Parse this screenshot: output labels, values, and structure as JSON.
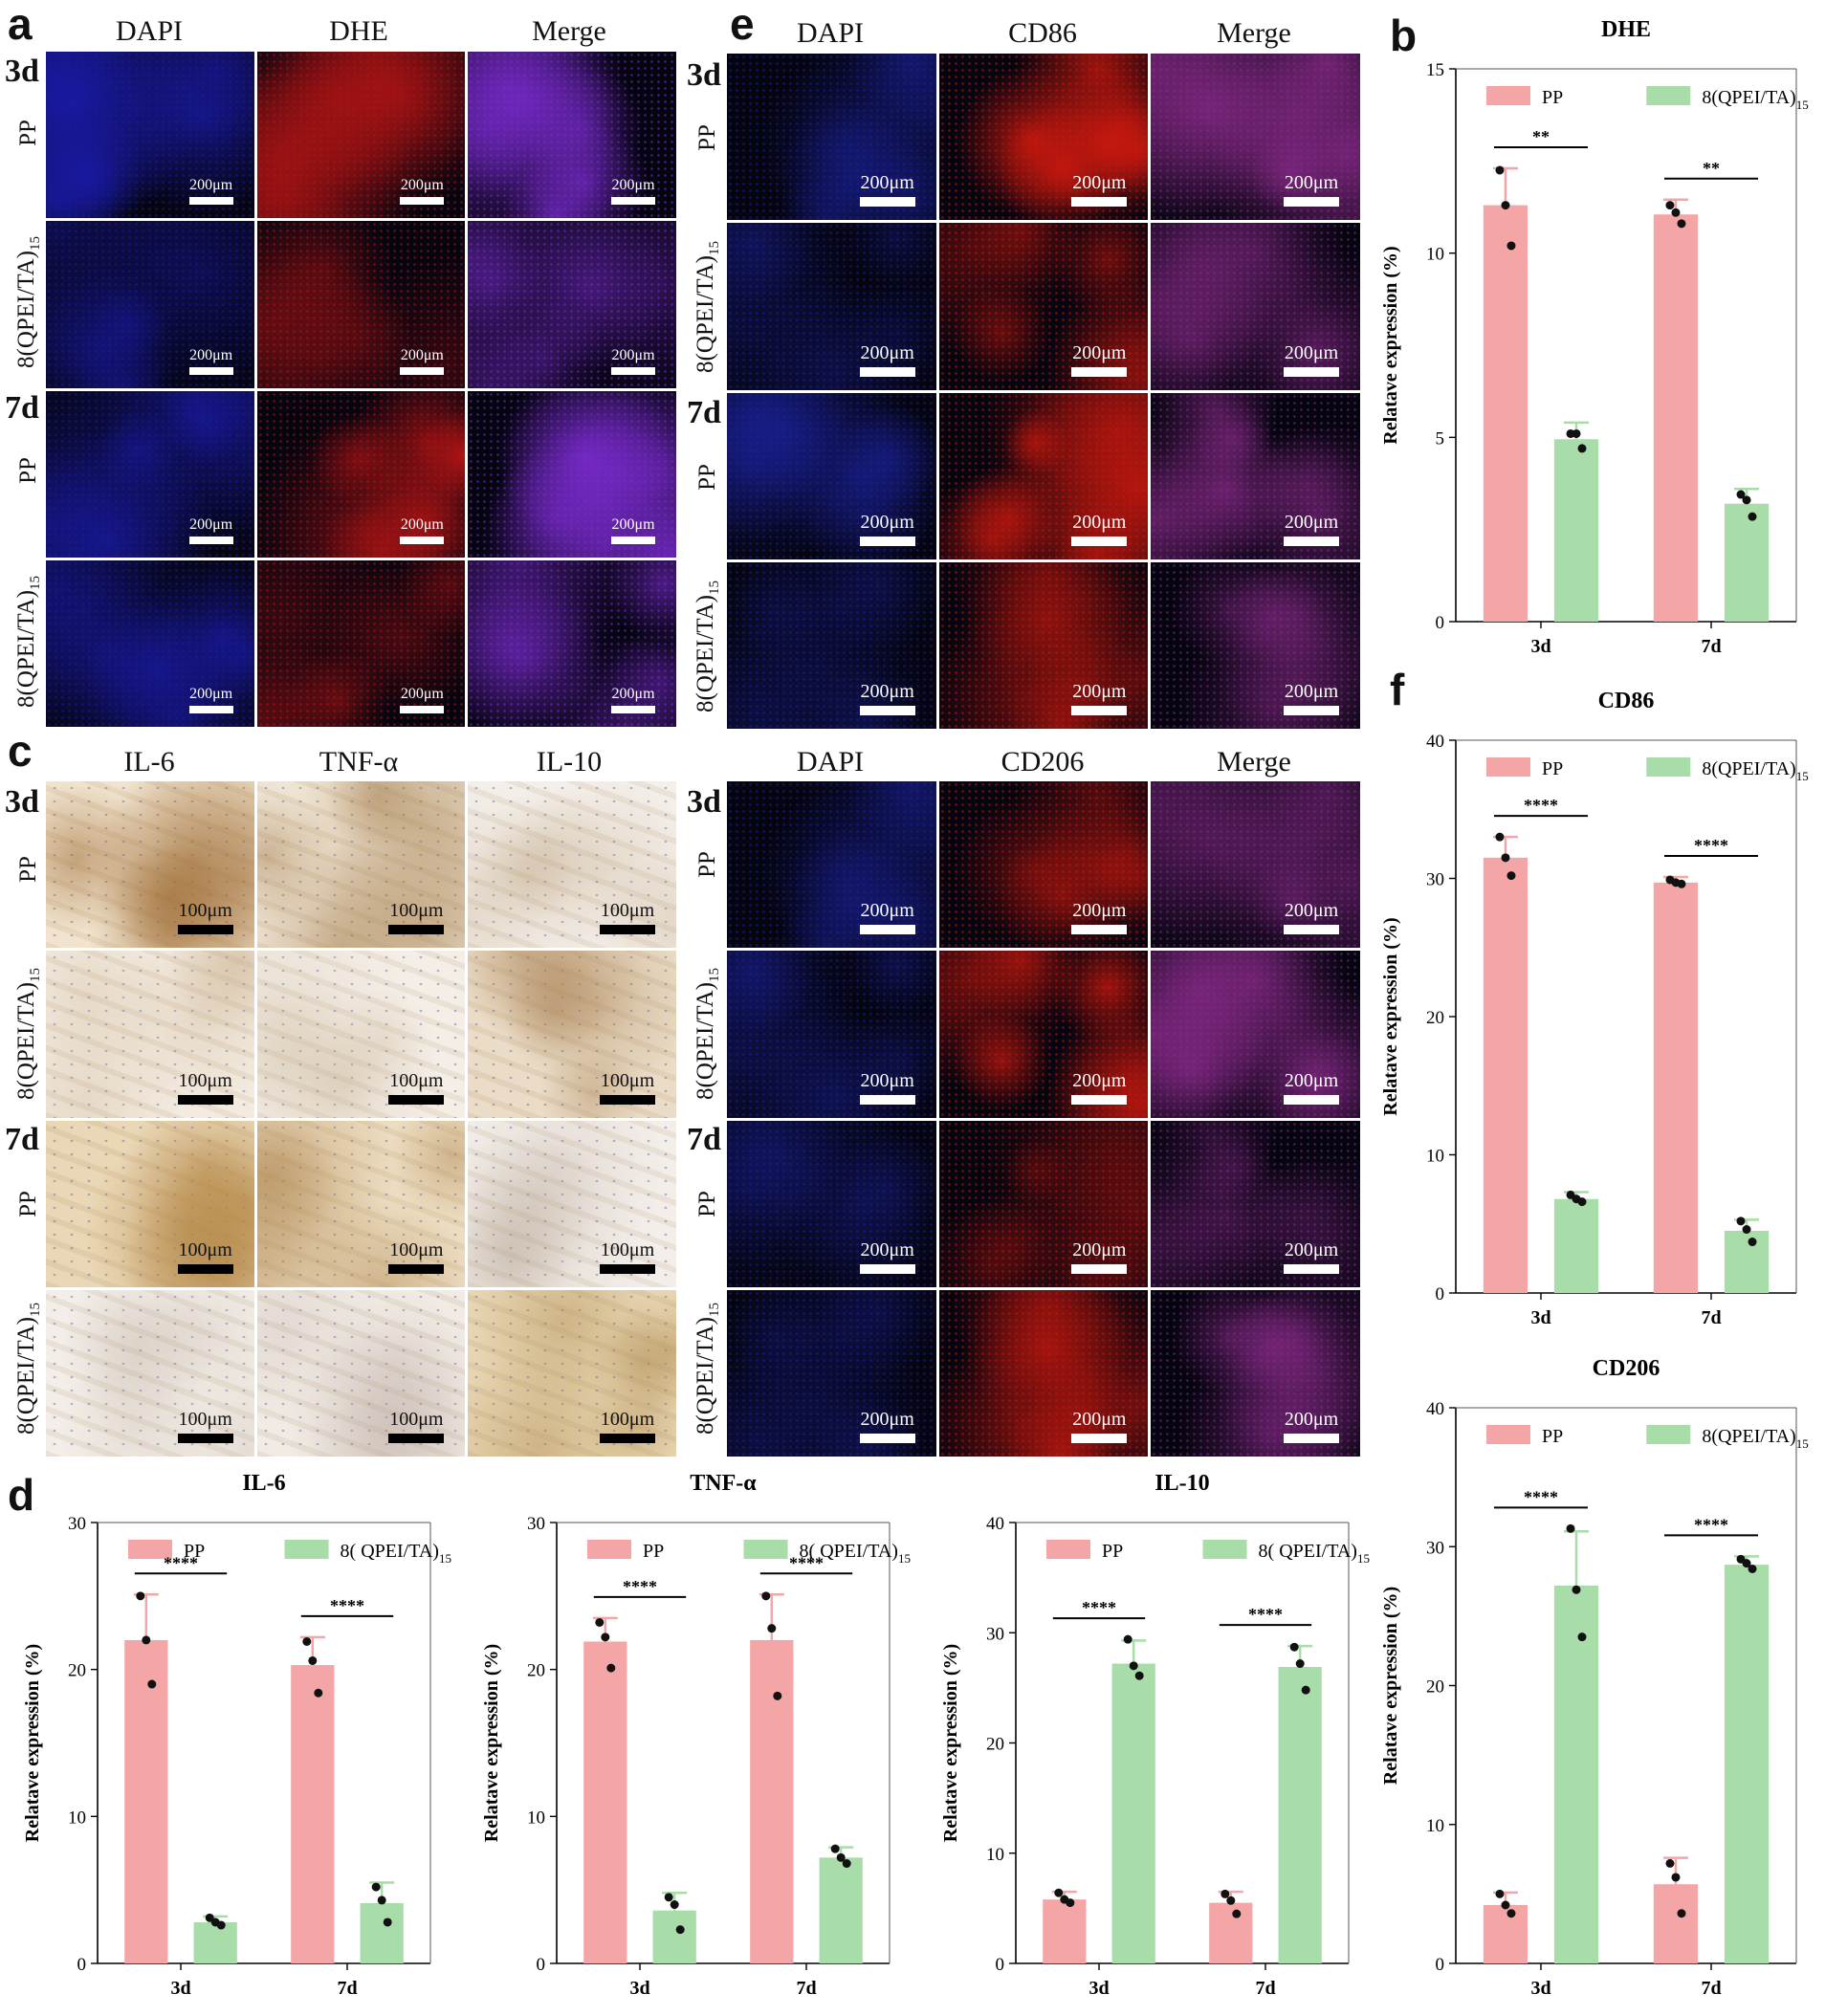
{
  "panels": {
    "a": {
      "letter": "a",
      "columns": [
        "DAPI",
        "DHE",
        "Merge"
      ],
      "days": [
        "3d",
        "7d"
      ],
      "rows": [
        "PP",
        "8(QPEI/TA)",
        "PP",
        "8(QPEI/TA)"
      ],
      "row_subscript": "15",
      "scale_label": "200μm",
      "colors": {
        "DAPI": "#1a1aa8",
        "DHE": "#b41414",
        "Merge": "#7b2bd0"
      }
    },
    "e": {
      "letter": "e",
      "columns_top": [
        "DAPI",
        "CD86",
        "Merge"
      ],
      "columns_bottom": [
        "DAPI",
        "CD206",
        "Merge"
      ],
      "days": [
        "3d",
        "7d",
        "3d",
        "7d"
      ],
      "rows": [
        "PP",
        "8(QPEI/TA)",
        "PP",
        "8(QPEI/TA)",
        "PP",
        "8(QPEI/TA)",
        "PP",
        "8(QPEI/TA)"
      ],
      "row_subscript": "15",
      "scale_label": "200μm"
    },
    "c": {
      "letter": "c",
      "columns": [
        "IL-6",
        "TNF-α",
        "IL-10"
      ],
      "days": [
        "3d",
        "7d"
      ],
      "rows": [
        "PP",
        "8(QPEI/TA)",
        "PP",
        "8(QPEI/TA)"
      ],
      "row_subscript": "15",
      "scale_label": "100μm"
    },
    "b": {
      "letter": "b"
    },
    "f": {
      "letter": "f"
    },
    "d": {
      "letter": "d"
    }
  },
  "chart_data": [
    {
      "id": "b-dhe",
      "type": "bar",
      "title": "DHE",
      "categories": [
        "3d",
        "7d"
      ],
      "ylabel": "Relatave expression (%)",
      "ylim": [
        0,
        15
      ],
      "yticks": [
        0,
        5,
        10,
        15
      ],
      "series": [
        {
          "name": "PP",
          "values": [
            11.3,
            11.05
          ],
          "err": [
            1.0,
            0.4
          ],
          "points": [
            [
              12.25,
              10.2,
              11.3
            ],
            [
              11.3,
              10.8,
              11.1
            ]
          ],
          "color": "#f4a6a6"
        },
        {
          "name": "8(QPEI/TA)",
          "name_sub": "15",
          "values": [
            4.95,
            3.2
          ],
          "err": [
            0.45,
            0.4
          ],
          "points": [
            [
              5.1,
              4.7,
              5.1
            ],
            [
              3.45,
              2.85,
              3.3
            ]
          ],
          "color": "#a8dca8"
        }
      ],
      "significance": [
        "**",
        "**"
      ]
    },
    {
      "id": "f-cd86",
      "type": "bar",
      "title": "CD86",
      "categories": [
        "3d",
        "7d"
      ],
      "ylabel": "Relatave expression (%)",
      "ylim": [
        0,
        40
      ],
      "yticks": [
        0,
        10,
        20,
        30,
        40
      ],
      "series": [
        {
          "name": "PP",
          "values": [
            31.5,
            29.7
          ],
          "err": [
            1.5,
            0.4
          ],
          "points": [
            [
              33.0,
              30.2,
              31.5
            ],
            [
              29.9,
              29.6,
              29.7
            ]
          ],
          "color": "#f4a6a6"
        },
        {
          "name": "8(QPEI/TA)",
          "name_sub": "15",
          "values": [
            6.8,
            4.5
          ],
          "err": [
            0.5,
            0.8
          ],
          "points": [
            [
              7.1,
              6.6,
              6.8
            ],
            [
              5.2,
              3.7,
              4.6
            ]
          ],
          "color": "#a8dca8"
        }
      ],
      "significance": [
        "****",
        "****"
      ]
    },
    {
      "id": "f-cd206",
      "type": "bar",
      "title": "CD206",
      "categories": [
        "3d",
        "7d"
      ],
      "ylabel": "Relatave expression (%)",
      "ylim": [
        0,
        40
      ],
      "yticks": [
        0,
        10,
        20,
        30,
        40
      ],
      "series": [
        {
          "name": "PP",
          "values": [
            4.2,
            5.7
          ],
          "err": [
            0.9,
            1.9
          ],
          "points": [
            [
              5.0,
              3.6,
              4.2
            ],
            [
              7.2,
              3.6,
              6.2
            ]
          ],
          "color": "#f4a6a6"
        },
        {
          "name": "8(QPEI/TA)",
          "name_sub": "15",
          "values": [
            27.2,
            28.7
          ],
          "err": [
            3.9,
            0.6
          ],
          "points": [
            [
              31.3,
              23.5,
              26.9
            ],
            [
              29.1,
              28.4,
              28.8
            ]
          ],
          "color": "#a8dca8"
        }
      ],
      "significance": [
        "****",
        "****"
      ]
    },
    {
      "id": "d-il6",
      "type": "bar",
      "title": "IL-6",
      "categories": [
        "3d",
        "7d"
      ],
      "ylabel": "Relatave expression (%)",
      "ylim": [
        0,
        30
      ],
      "yticks": [
        0,
        10,
        20,
        30
      ],
      "series": [
        {
          "name": "PP",
          "values": [
            22.0,
            20.3
          ],
          "err": [
            3.1,
            1.9
          ],
          "points": [
            [
              25.0,
              19.0,
              22.0
            ],
            [
              21.9,
              18.4,
              20.6
            ]
          ],
          "color": "#f4a6a6"
        },
        {
          "name": "8( QPEI/TA)",
          "name_sub": "15",
          "values": [
            2.8,
            4.1
          ],
          "err": [
            0.4,
            1.4
          ],
          "points": [
            [
              3.1,
              2.6,
              2.8
            ],
            [
              5.2,
              2.8,
              4.3
            ]
          ],
          "color": "#a8dca8"
        }
      ],
      "significance": [
        "****",
        "****"
      ]
    },
    {
      "id": "d-tnfa",
      "type": "bar",
      "title": "TNF-α",
      "categories": [
        "3d",
        "7d"
      ],
      "ylabel": "Relatave expression (%)",
      "ylim": [
        0,
        30
      ],
      "yticks": [
        0,
        10,
        20,
        30
      ],
      "series": [
        {
          "name": "PP",
          "values": [
            21.9,
            22.0
          ],
          "err": [
            1.6,
            3.1
          ],
          "points": [
            [
              23.2,
              20.1,
              22.2
            ],
            [
              25.0,
              18.2,
              22.8
            ]
          ],
          "color": "#f4a6a6"
        },
        {
          "name": "8( QPEI/TA)",
          "name_sub": "15",
          "values": [
            3.6,
            7.2
          ],
          "err": [
            1.2,
            0.7
          ],
          "points": [
            [
              4.5,
              2.3,
              4.0
            ],
            [
              7.8,
              6.8,
              7.2
            ]
          ],
          "color": "#a8dca8"
        }
      ],
      "significance": [
        "****",
        "****"
      ]
    },
    {
      "id": "d-il10",
      "type": "bar",
      "title": "IL-10",
      "categories": [
        "3d",
        "7d"
      ],
      "ylabel": "Relatave expression (%)",
      "ylim": [
        0,
        40
      ],
      "yticks": [
        0,
        10,
        20,
        30,
        40
      ],
      "series": [
        {
          "name": "PP",
          "values": [
            5.8,
            5.5
          ],
          "err": [
            0.7,
            1.0
          ],
          "points": [
            [
              6.4,
              5.5,
              5.8
            ],
            [
              6.3,
              4.5,
              5.7
            ]
          ],
          "color": "#f4a6a6"
        },
        {
          "name": "8( QPEI/TA)",
          "name_sub": "15",
          "values": [
            27.2,
            26.9
          ],
          "err": [
            2.1,
            1.9
          ],
          "points": [
            [
              29.4,
              26.1,
              27.0
            ],
            [
              28.7,
              24.8,
              27.2
            ]
          ],
          "color": "#a8dca8"
        }
      ],
      "significance": [
        "****",
        "****"
      ]
    }
  ]
}
